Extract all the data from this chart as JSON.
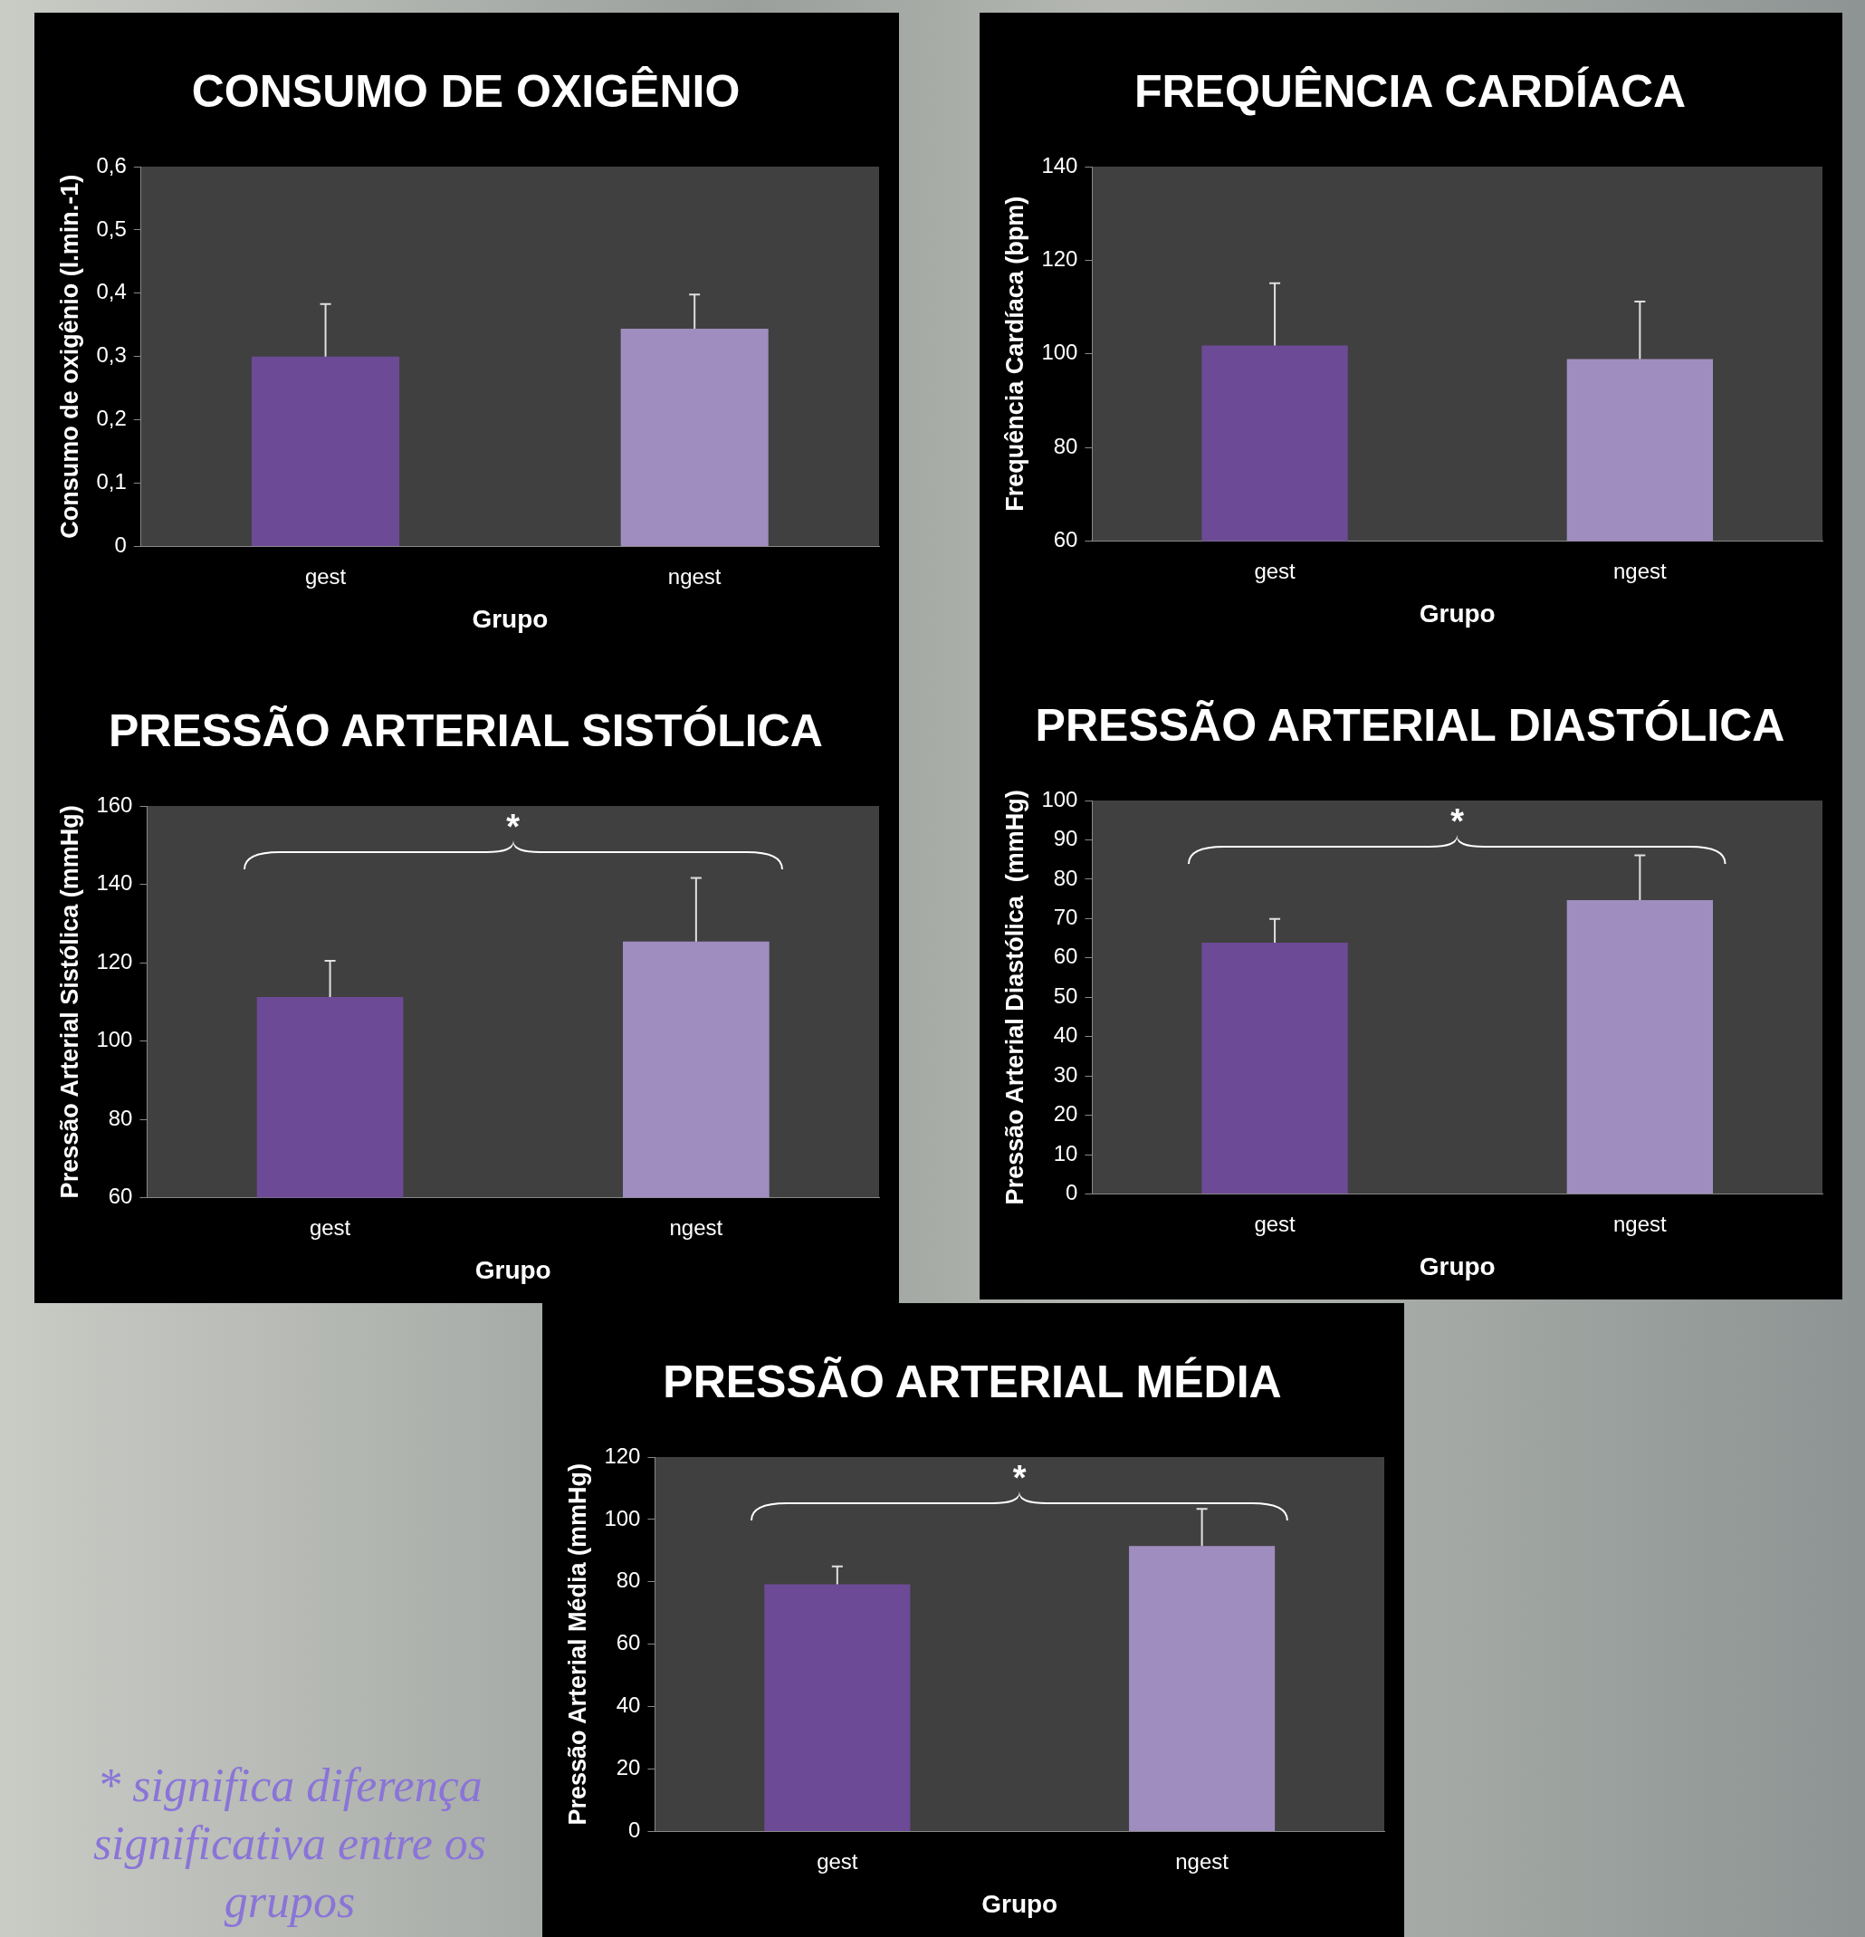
{
  "chart_data": [
    {
      "type": "bar",
      "title": "CONSUMO DE OXIGÊNIO",
      "xlabel": "Grupo",
      "ylabel": "Consumo de oxigênio (l.min.-1)",
      "categories": [
        "gest",
        "ngest"
      ],
      "values": [
        0.3,
        0.344
      ],
      "colors": [
        "#6d4a96",
        "#a08dbf"
      ],
      "errors": [
        [
          0.3,
          0.383
        ],
        [
          0.344,
          0.398
        ]
      ],
      "ylim": [
        0,
        0.6
      ],
      "yticks": [
        {
          "value": 0,
          "label": "0"
        },
        {
          "value": 0.1,
          "label": "0,1"
        },
        {
          "value": 0.2,
          "label": "0,2"
        },
        {
          "value": 0.3,
          "label": "0,3"
        },
        {
          "value": 0.4,
          "label": "0,4"
        },
        {
          "value": 0.5,
          "label": "0,5"
        },
        {
          "value": 0.6,
          "label": "0,6"
        }
      ],
      "grid": false,
      "legend": false
    },
    {
      "type": "bar",
      "title": "FREQUÊNCIA CARDÍACA",
      "xlabel": "Grupo",
      "ylabel": "Frequência Cardíaca (bpm)",
      "categories": [
        "gest",
        "ngest"
      ],
      "values": [
        101.8,
        98.9
      ],
      "colors": [
        "#6d4a96",
        "#a08dbf"
      ],
      "errors": [
        [
          101.8,
          115.1
        ],
        [
          98.9,
          111.2
        ]
      ],
      "ylim": [
        60,
        140
      ],
      "yticks": [
        60,
        80,
        100,
        120,
        140
      ],
      "grid": false,
      "legend": false
    },
    {
      "type": "bar",
      "title": "PRESSÃO ARTERIAL SISTÓLICA",
      "xlabel": "Grupo",
      "ylabel": "Pressão Arterial Sistólica (mmHg)",
      "categories": [
        "gest",
        "ngest"
      ],
      "values": [
        111.2,
        125.4
      ],
      "colors": [
        "#6d4a96",
        "#a08dbf"
      ],
      "errors": [
        [
          111.2,
          120.5
        ],
        [
          125.4,
          141.6
        ]
      ],
      "ylim": [
        60,
        160
      ],
      "yticks": [
        60,
        80,
        100,
        120,
        140,
        160
      ],
      "grid": false,
      "legend": false,
      "annotations": [
        "*"
      ]
    },
    {
      "type": "bar",
      "title": "PRESSÃO ARTERIAL DIASTÓLICA",
      "xlabel": "Grupo",
      "ylabel": "Pressão Arterial Diastólica  (mmHg)",
      "categories": [
        "gest",
        "ngest"
      ],
      "values": [
        63.9,
        74.7
      ],
      "colors": [
        "#6d4a96",
        "#a08dbf"
      ],
      "errors": [
        [
          63.9,
          69.9
        ],
        [
          74.7,
          86.1
        ]
      ],
      "ylim": [
        0,
        100
      ],
      "yticks": [
        0,
        10,
        20,
        30,
        40,
        50,
        60,
        70,
        80,
        90,
        100
      ],
      "grid": false,
      "legend": false,
      "annotations": [
        "*"
      ]
    },
    {
      "type": "bar",
      "title": "PRESSÃO ARTERIAL MÉDIA",
      "xlabel": "Grupo",
      "ylabel": "Pressão Arterial Média (mmHg)",
      "categories": [
        "gest",
        "ngest"
      ],
      "values": [
        79.2,
        91.5
      ],
      "colors": [
        "#6d4a96",
        "#a08dbf"
      ],
      "errors": [
        [
          79.2,
          85
        ],
        [
          91.5,
          103.4
        ]
      ],
      "ylim": [
        0,
        120
      ],
      "yticks": [
        0,
        20,
        40,
        60,
        80,
        100,
        120
      ],
      "grid": false,
      "legend": false,
      "annotations": [
        "*",
        "* significa diferença significativa entre os grupos"
      ]
    }
  ]
}
